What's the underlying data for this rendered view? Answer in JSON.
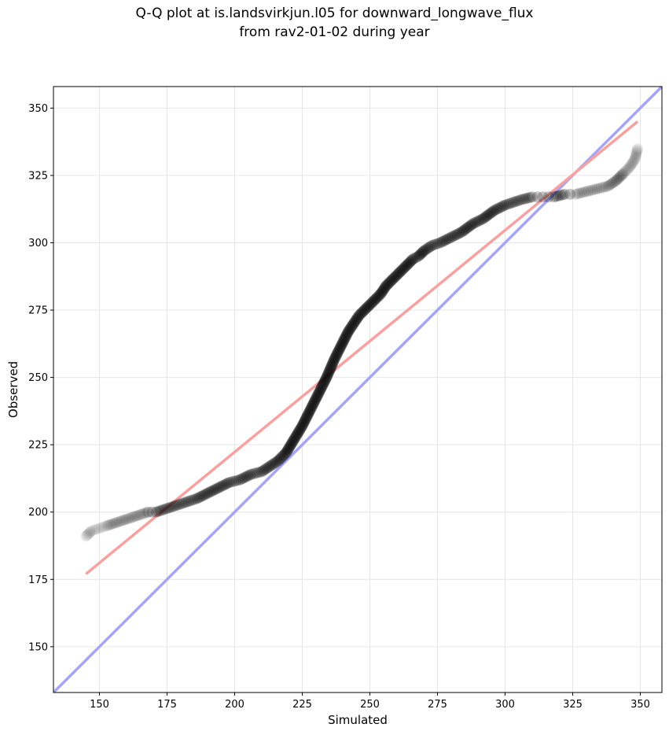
{
  "chart_data": {
    "type": "scatter",
    "title_line_1": "Q-Q plot at is.landsvirkjun.l05 for downward_longwave_flux",
    "title_line_2": "from rav2-01-02 during year",
    "xlabel": "Simulated",
    "ylabel": "Observed",
    "xlim": [
      133,
      358
    ],
    "ylim": [
      133,
      358
    ],
    "x_ticks": [
      150,
      175,
      200,
      225,
      250,
      275,
      300,
      325,
      350
    ],
    "y_ticks": [
      150,
      175,
      200,
      225,
      250,
      275,
      300,
      325,
      350
    ],
    "grid": true,
    "quantile_points": {
      "x": [
        145,
        147,
        150,
        153,
        156,
        159,
        162,
        165,
        168,
        171,
        174,
        177,
        180,
        183,
        186,
        190,
        194,
        198,
        202,
        206,
        210,
        213,
        216,
        219,
        222,
        225,
        228,
        231,
        234,
        237,
        240,
        242,
        244,
        246,
        248,
        250,
        252,
        254,
        256,
        258,
        260,
        262,
        264,
        266,
        268,
        270,
        273,
        276,
        280,
        284,
        288,
        292,
        296,
        300,
        303,
        306,
        310,
        314,
        318,
        322,
        326,
        330,
        334,
        338,
        341,
        344,
        346,
        348,
        349
      ],
      "y": [
        191,
        193,
        194,
        195,
        196,
        197,
        198,
        199,
        200,
        200,
        201,
        202,
        203,
        204,
        205,
        207,
        209,
        211,
        212,
        214,
        215,
        217,
        219,
        222,
        227,
        232,
        238,
        244,
        250,
        257,
        263,
        267,
        270,
        273,
        275,
        277,
        279,
        281,
        284,
        286,
        288,
        290,
        292,
        294,
        295,
        297,
        299,
        300,
        302,
        304,
        307,
        309,
        312,
        314,
        315,
        316,
        317,
        317,
        317,
        318,
        318,
        319,
        320,
        321,
        323,
        326,
        328,
        331,
        335
      ]
    },
    "fit_line": {
      "color": "#f7a1a1",
      "x": [
        145,
        349
      ],
      "y": [
        177,
        345
      ]
    },
    "reference_line": {
      "color": "#a5a5f5",
      "x": [
        133,
        358
      ],
      "y": [
        133,
        358
      ]
    },
    "point_color": "#000000"
  }
}
